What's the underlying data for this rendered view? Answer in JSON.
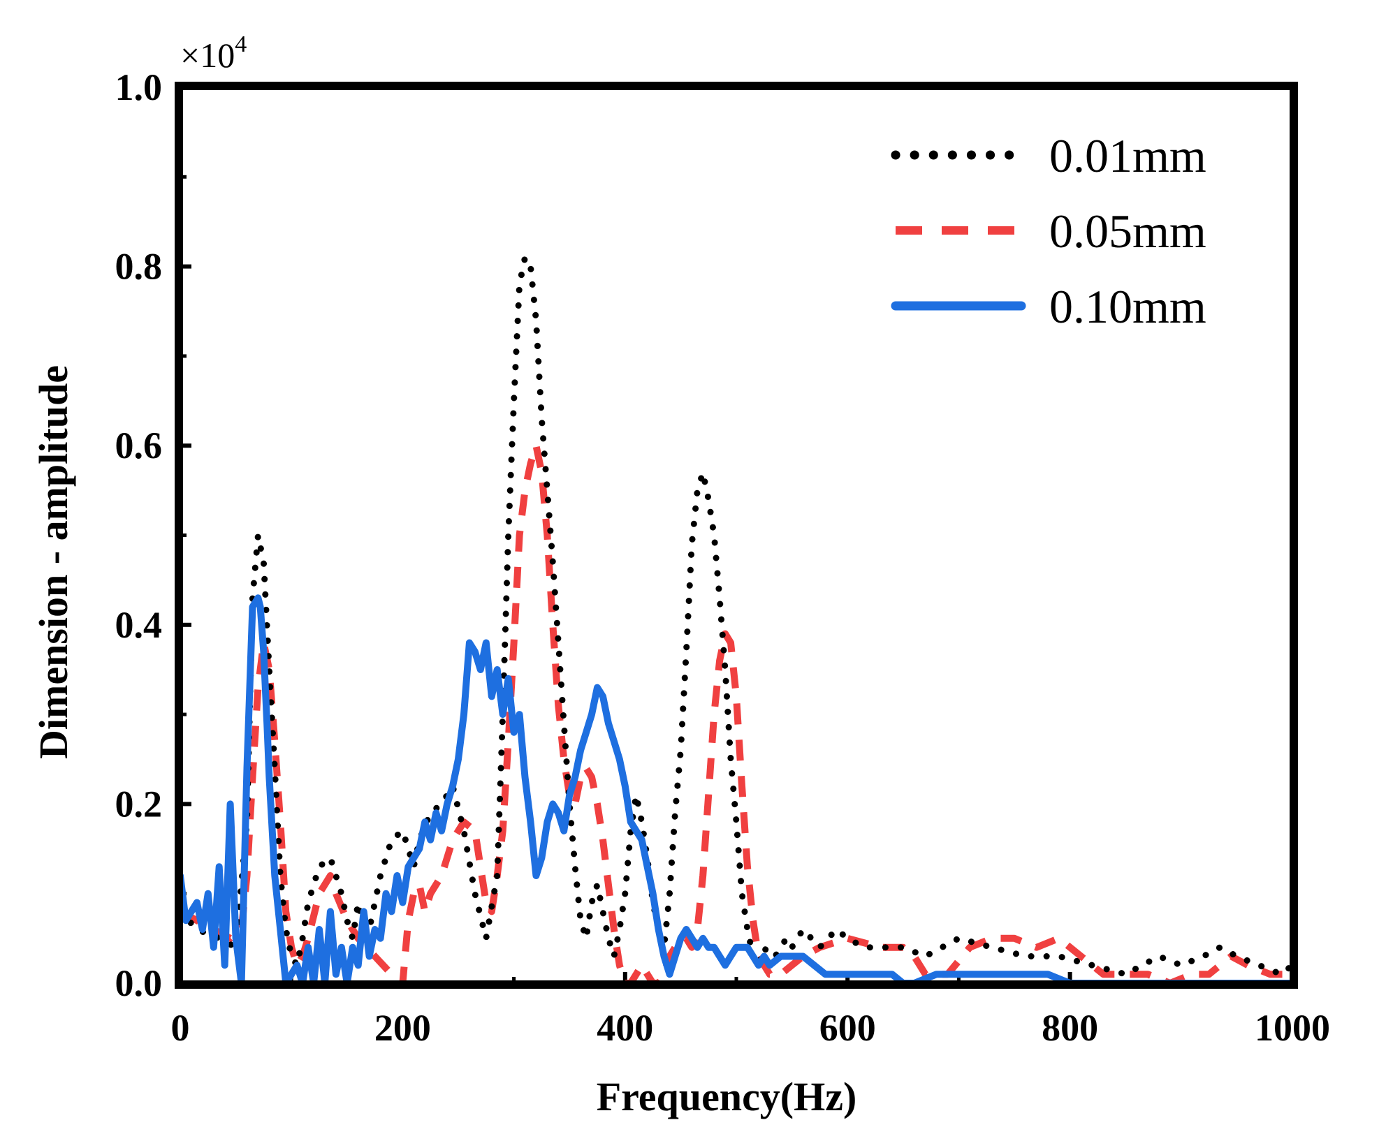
{
  "chart_data": {
    "type": "line",
    "title": "",
    "xlabel": "Frequency(Hz)",
    "ylabel": "Dimension - amplitude",
    "y_exponent_label": "×10",
    "y_exponent_power": "4",
    "xlim": [
      0,
      1000
    ],
    "ylim": [
      0,
      1.0
    ],
    "x_ticks": [
      0,
      200,
      400,
      600,
      800,
      1000
    ],
    "x_tick_labels": [
      "0",
      "200",
      "400",
      "600",
      "800",
      "1000"
    ],
    "y_ticks": [
      0,
      0.2,
      0.4,
      0.6,
      0.8,
      1.0
    ],
    "y_tick_labels": [
      "0.0",
      "0.2",
      "0.4",
      "0.6",
      "0.8",
      "1.0"
    ],
    "grid": false,
    "legend_position": "top-right",
    "series": [
      {
        "name": "0.01mm",
        "style": "dotted",
        "color": "#000000",
        "x": [
          0,
          15,
          35,
          50,
          60,
          65,
          70,
          75,
          80,
          85,
          90,
          95,
          100,
          105,
          110,
          115,
          125,
          135,
          145,
          150,
          155,
          160,
          165,
          170,
          175,
          180,
          190,
          200,
          205,
          210,
          215,
          225,
          235,
          245,
          255,
          265,
          275,
          285,
          290,
          295,
          300,
          305,
          310,
          315,
          320,
          325,
          330,
          335,
          340,
          345,
          350,
          355,
          360,
          365,
          370,
          375,
          380,
          385,
          390,
          395,
          400,
          405,
          410,
          415,
          420,
          425,
          430,
          435,
          440,
          445,
          450,
          455,
          460,
          465,
          470,
          475,
          480,
          485,
          490,
          495,
          500,
          505,
          510,
          515,
          520,
          525,
          530,
          535,
          540,
          545,
          550,
          560,
          575,
          590,
          600,
          615,
          630,
          650,
          670,
          700,
          730,
          760,
          790,
          820,
          850,
          880,
          900,
          920,
          935,
          950,
          970,
          990,
          1000
        ],
        "y": [
          0.08,
          0.06,
          0.05,
          0.04,
          0.18,
          0.43,
          0.5,
          0.47,
          0.35,
          0.24,
          0.12,
          0.06,
          0.03,
          0.02,
          0.05,
          0.09,
          0.13,
          0.14,
          0.1,
          0.07,
          0.05,
          0.09,
          0.05,
          0.06,
          0.09,
          0.12,
          0.16,
          0.17,
          0.15,
          0.13,
          0.16,
          0.19,
          0.2,
          0.22,
          0.17,
          0.1,
          0.05,
          0.12,
          0.3,
          0.5,
          0.65,
          0.78,
          0.81,
          0.8,
          0.74,
          0.63,
          0.55,
          0.47,
          0.38,
          0.29,
          0.2,
          0.13,
          0.07,
          0.05,
          0.09,
          0.11,
          0.08,
          0.05,
          0.03,
          0.06,
          0.1,
          0.17,
          0.21,
          0.18,
          0.14,
          0.09,
          0.06,
          0.04,
          0.1,
          0.19,
          0.26,
          0.37,
          0.49,
          0.55,
          0.57,
          0.54,
          0.5,
          0.43,
          0.35,
          0.25,
          0.18,
          0.1,
          0.06,
          0.03,
          0.02,
          0.04,
          0.03,
          0.03,
          0.04,
          0.05,
          0.04,
          0.06,
          0.04,
          0.06,
          0.05,
          0.04,
          0.04,
          0.04,
          0.03,
          0.05,
          0.04,
          0.03,
          0.03,
          0.02,
          0.01,
          0.03,
          0.02,
          0.03,
          0.04,
          0.03,
          0.02,
          0.01,
          0.02
        ]
      },
      {
        "name": "0.05mm",
        "style": "dashed",
        "color": "#f04040",
        "x": [
          0,
          15,
          30,
          45,
          55,
          60,
          65,
          70,
          75,
          80,
          85,
          90,
          95,
          100,
          105,
          110,
          115,
          125,
          135,
          140,
          150,
          160,
          175,
          190,
          200,
          205,
          210,
          215,
          220,
          225,
          235,
          245,
          255,
          265,
          270,
          275,
          280,
          285,
          290,
          295,
          300,
          305,
          310,
          315,
          320,
          325,
          330,
          335,
          340,
          345,
          350,
          355,
          360,
          365,
          370,
          375,
          380,
          385,
          390,
          395,
          400,
          405,
          410,
          415,
          420,
          425,
          430,
          435,
          440,
          445,
          450,
          455,
          460,
          465,
          470,
          475,
          480,
          485,
          490,
          495,
          500,
          505,
          510,
          515,
          520,
          525,
          530,
          540,
          550,
          560,
          575,
          600,
          630,
          650,
          660,
          670,
          690,
          710,
          730,
          750,
          770,
          790,
          810,
          830,
          850,
          870,
          890,
          910,
          925,
          935,
          945,
          960,
          980,
          995,
          1000
        ],
        "y": [
          0.08,
          0.07,
          0.06,
          0.05,
          0.06,
          0.12,
          0.23,
          0.33,
          0.38,
          0.35,
          0.27,
          0.18,
          0.08,
          0.04,
          0.02,
          0.03,
          0.05,
          0.1,
          0.12,
          0.1,
          0.07,
          0.05,
          0.03,
          0.01,
          0.0,
          0.07,
          0.1,
          0.11,
          0.08,
          0.1,
          0.12,
          0.16,
          0.18,
          0.17,
          0.13,
          0.09,
          0.08,
          0.12,
          0.17,
          0.27,
          0.38,
          0.5,
          0.55,
          0.58,
          0.6,
          0.57,
          0.5,
          0.4,
          0.31,
          0.25,
          0.21,
          0.2,
          0.23,
          0.24,
          0.23,
          0.2,
          0.16,
          0.11,
          0.06,
          0.02,
          0.0,
          0.0,
          0.01,
          0.02,
          0.01,
          0.0,
          0.0,
          0.01,
          0.03,
          0.04,
          0.05,
          0.05,
          0.04,
          0.06,
          0.12,
          0.21,
          0.3,
          0.36,
          0.39,
          0.38,
          0.32,
          0.22,
          0.13,
          0.07,
          0.03,
          0.02,
          0.01,
          0.01,
          0.02,
          0.03,
          0.04,
          0.05,
          0.04,
          0.04,
          0.03,
          0.01,
          0.01,
          0.04,
          0.05,
          0.05,
          0.04,
          0.05,
          0.03,
          0.01,
          0.01,
          0.01,
          0.0,
          0.01,
          0.01,
          0.02,
          0.03,
          0.02,
          0.01,
          0.01,
          0.02
        ]
      },
      {
        "name": "0.10mm",
        "style": "solid",
        "color": "#1e6fe0",
        "x": [
          0,
          5,
          10,
          15,
          20,
          25,
          30,
          35,
          40,
          45,
          50,
          55,
          60,
          65,
          70,
          72,
          75,
          78,
          80,
          85,
          90,
          95,
          100,
          105,
          110,
          115,
          120,
          125,
          130,
          135,
          140,
          145,
          150,
          155,
          160,
          165,
          170,
          175,
          180,
          185,
          190,
          195,
          200,
          205,
          210,
          215,
          220,
          225,
          230,
          235,
          240,
          245,
          250,
          255,
          260,
          265,
          270,
          275,
          280,
          285,
          290,
          295,
          300,
          305,
          310,
          315,
          320,
          325,
          330,
          335,
          340,
          345,
          350,
          355,
          360,
          365,
          370,
          375,
          380,
          385,
          390,
          395,
          400,
          405,
          410,
          415,
          420,
          425,
          430,
          435,
          440,
          445,
          450,
          455,
          460,
          465,
          470,
          475,
          480,
          485,
          490,
          495,
          500,
          505,
          510,
          515,
          520,
          525,
          530,
          540,
          550,
          560,
          570,
          580,
          590,
          600,
          620,
          640,
          650,
          660,
          680,
          700,
          720,
          740,
          760,
          780,
          800,
          820,
          840,
          860,
          880,
          900,
          920,
          940,
          960,
          980,
          1000
        ],
        "y": [
          0.12,
          0.07,
          0.08,
          0.09,
          0.06,
          0.1,
          0.04,
          0.13,
          0.02,
          0.2,
          0.05,
          0.0,
          0.24,
          0.42,
          0.43,
          0.42,
          0.37,
          0.29,
          0.23,
          0.12,
          0.06,
          0.0,
          0.01,
          0.02,
          0.0,
          0.04,
          0.0,
          0.06,
          0.0,
          0.08,
          0.01,
          0.04,
          0.0,
          0.04,
          0.02,
          0.08,
          0.03,
          0.06,
          0.05,
          0.1,
          0.08,
          0.12,
          0.09,
          0.13,
          0.14,
          0.15,
          0.18,
          0.16,
          0.19,
          0.17,
          0.2,
          0.22,
          0.25,
          0.3,
          0.38,
          0.37,
          0.35,
          0.38,
          0.32,
          0.35,
          0.3,
          0.34,
          0.28,
          0.3,
          0.23,
          0.18,
          0.12,
          0.14,
          0.18,
          0.2,
          0.19,
          0.17,
          0.21,
          0.23,
          0.26,
          0.28,
          0.3,
          0.33,
          0.32,
          0.29,
          0.27,
          0.25,
          0.22,
          0.18,
          0.17,
          0.16,
          0.13,
          0.1,
          0.06,
          0.03,
          0.01,
          0.03,
          0.05,
          0.06,
          0.05,
          0.04,
          0.05,
          0.04,
          0.04,
          0.03,
          0.02,
          0.03,
          0.04,
          0.04,
          0.04,
          0.03,
          0.02,
          0.03,
          0.02,
          0.03,
          0.03,
          0.03,
          0.02,
          0.01,
          0.01,
          0.01,
          0.01,
          0.01,
          0.0,
          0.0,
          0.01,
          0.01,
          0.01,
          0.01,
          0.01,
          0.01,
          0.0,
          0.0,
          0.0,
          0.0,
          0.0,
          0.0,
          0.0,
          0.0,
          0.0,
          0.0,
          0.0
        ]
      }
    ]
  }
}
